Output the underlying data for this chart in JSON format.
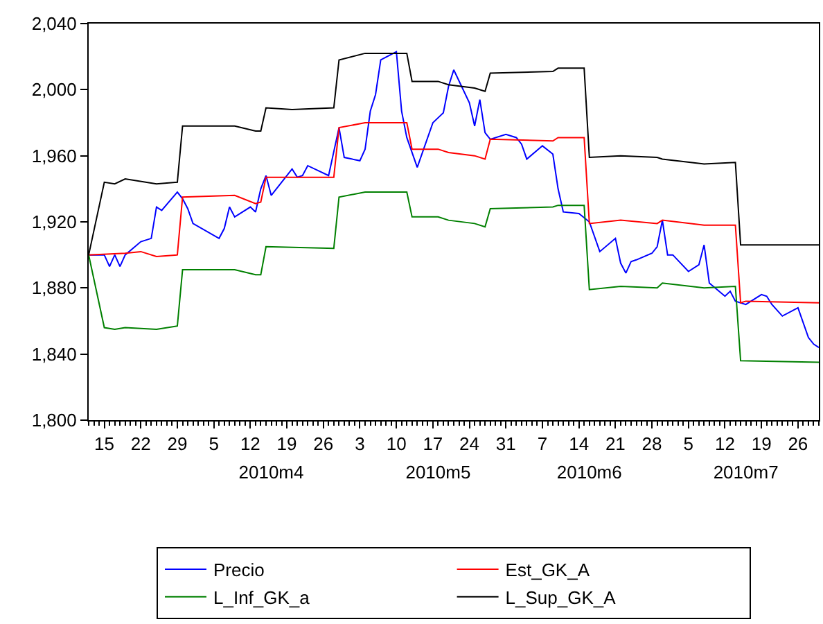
{
  "chart_data": {
    "type": "line",
    "xlim": [
      "2010-03-12",
      "2010-07-30"
    ],
    "xticks": [
      {
        "value": "2010-03-15",
        "label": "15"
      },
      {
        "value": "2010-03-22",
        "label": "22"
      },
      {
        "value": "2010-03-29",
        "label": "29"
      },
      {
        "value": "2010-04-05",
        "label": "5"
      },
      {
        "value": "2010-04-12",
        "label": "12"
      },
      {
        "value": "2010-04-19",
        "label": "19"
      },
      {
        "value": "2010-04-26",
        "label": "26"
      },
      {
        "value": "2010-05-03",
        "label": "3"
      },
      {
        "value": "2010-05-10",
        "label": "10"
      },
      {
        "value": "2010-05-17",
        "label": "17"
      },
      {
        "value": "2010-05-24",
        "label": "24"
      },
      {
        "value": "2010-05-31",
        "label": "31"
      },
      {
        "value": "2010-06-07",
        "label": "7"
      },
      {
        "value": "2010-06-14",
        "label": "14"
      },
      {
        "value": "2010-06-21",
        "label": "21"
      },
      {
        "value": "2010-06-28",
        "label": "28"
      },
      {
        "value": "2010-07-05",
        "label": "5"
      },
      {
        "value": "2010-07-12",
        "label": "12"
      },
      {
        "value": "2010-07-19",
        "label": "19"
      },
      {
        "value": "2010-07-26",
        "label": "26"
      }
    ],
    "x2lim": [
      "2010-03-12",
      "2010-07-30"
    ],
    "x2ticks": [
      {
        "value": "2010-04-16",
        "label": "2010m4"
      },
      {
        "value": "2010-05-18",
        "label": "2010m5"
      },
      {
        "value": "2010-06-16",
        "label": "2010m6"
      },
      {
        "value": "2010-07-16",
        "label": "2010m7"
      }
    ],
    "ylim": [
      1800,
      2040
    ],
    "yticks": [
      {
        "value": 1800,
        "label": "1,800"
      },
      {
        "value": 1840,
        "label": "1,840"
      },
      {
        "value": 1880,
        "label": "1,880"
      },
      {
        "value": 1920,
        "label": "1,920"
      },
      {
        "value": 1960,
        "label": "1,960"
      },
      {
        "value": 2000,
        "label": "2,000"
      },
      {
        "value": 2040,
        "label": "2,040"
      }
    ],
    "legend": "bottom",
    "series": [
      {
        "name": "Precio",
        "color": "#0000ff",
        "x": [
          "2010-03-12",
          "2010-03-15",
          "2010-03-16",
          "2010-03-17",
          "2010-03-18",
          "2010-03-19",
          "2010-03-22",
          "2010-03-24",
          "2010-03-25",
          "2010-03-26",
          "2010-03-29",
          "2010-03-30",
          "2010-03-31",
          "2010-04-01",
          "2010-04-06",
          "2010-04-07",
          "2010-04-08",
          "2010-04-09",
          "2010-04-12",
          "2010-04-13",
          "2010-04-14",
          "2010-04-15",
          "2010-04-16",
          "2010-04-20",
          "2010-04-21",
          "2010-04-22",
          "2010-04-23",
          "2010-04-27",
          "2010-04-29",
          "2010-04-30",
          "2010-05-03",
          "2010-05-04",
          "2010-05-05",
          "2010-05-06",
          "2010-05-07",
          "2010-05-10",
          "2010-05-11",
          "2010-05-12",
          "2010-05-14",
          "2010-05-17",
          "2010-05-18",
          "2010-05-19",
          "2010-05-20",
          "2010-05-21",
          "2010-05-24",
          "2010-05-25",
          "2010-05-26",
          "2010-05-27",
          "2010-05-28",
          "2010-05-31",
          "2010-06-02",
          "2010-06-03",
          "2010-06-04",
          "2010-06-07",
          "2010-06-09",
          "2010-06-10",
          "2010-06-11",
          "2010-06-14",
          "2010-06-16",
          "2010-06-18",
          "2010-06-21",
          "2010-06-22",
          "2010-06-23",
          "2010-06-24",
          "2010-06-25",
          "2010-06-28",
          "2010-06-29",
          "2010-06-30",
          "2010-07-01",
          "2010-07-02",
          "2010-07-05",
          "2010-07-07",
          "2010-07-08",
          "2010-07-09",
          "2010-07-12",
          "2010-07-13",
          "2010-07-14",
          "2010-07-16",
          "2010-07-19",
          "2010-07-20",
          "2010-07-21",
          "2010-07-23",
          "2010-07-26",
          "2010-07-28",
          "2010-07-29",
          "2010-07-30"
        ],
        "values": [
          1900,
          1900,
          1893,
          1900,
          1893,
          1900,
          1908,
          1910,
          1929,
          1927,
          1938,
          1934,
          1928,
          1919,
          1910,
          1916,
          1929,
          1923,
          1929,
          1926,
          1940,
          1948,
          1936,
          1952,
          1947,
          1948,
          1954,
          1948,
          1977,
          1959,
          1957,
          1964,
          1987,
          1997,
          2018,
          2023,
          1987,
          1971,
          1953,
          1980,
          1983,
          1986,
          2002,
          2012,
          1992,
          1978,
          1994,
          1974,
          1970,
          1973,
          1971,
          1967,
          1958,
          1966,
          1961,
          1940,
          1926,
          1925,
          1920,
          1902,
          1910,
          1895,
          1889,
          1896,
          1897,
          1901,
          1905,
          1921,
          1900,
          1900,
          1890,
          1894,
          1906,
          1883,
          1875,
          1878,
          1872,
          1870,
          1876,
          1875,
          1870,
          1863,
          1868,
          1850,
          1846,
          1844
        ]
      },
      {
        "name": "Est_GK_A",
        "color": "#ff0000",
        "x": [
          "2010-03-12",
          "2010-03-19",
          "2010-03-22",
          "2010-03-25",
          "2010-03-29",
          "2010-03-30",
          "2010-04-09",
          "2010-04-13",
          "2010-04-14",
          "2010-04-15",
          "2010-04-28",
          "2010-04-29",
          "2010-05-04",
          "2010-05-12",
          "2010-05-13",
          "2010-05-18",
          "2010-05-20",
          "2010-05-25",
          "2010-05-27",
          "2010-05-28",
          "2010-06-09",
          "2010-06-10",
          "2010-06-15",
          "2010-06-16",
          "2010-06-22",
          "2010-06-29",
          "2010-06-30",
          "2010-07-08",
          "2010-07-14",
          "2010-07-15",
          "2010-07-16",
          "2010-07-30"
        ],
        "values": [
          1900,
          1901,
          1902,
          1899,
          1900,
          1935,
          1936,
          1931,
          1932,
          1947,
          1947,
          1977,
          1980,
          1980,
          1964,
          1964,
          1962,
          1960,
          1958,
          1970,
          1969,
          1971,
          1971,
          1919,
          1921,
          1919,
          1921,
          1918,
          1918,
          1871,
          1872,
          1871
        ]
      },
      {
        "name": "L_Inf_GK_a",
        "color": "#008000",
        "x": [
          "2010-03-12",
          "2010-03-15",
          "2010-03-17",
          "2010-03-19",
          "2010-03-25",
          "2010-03-29",
          "2010-03-30",
          "2010-04-09",
          "2010-04-13",
          "2010-04-14",
          "2010-04-15",
          "2010-04-28",
          "2010-04-29",
          "2010-05-04",
          "2010-05-12",
          "2010-05-13",
          "2010-05-18",
          "2010-05-20",
          "2010-05-25",
          "2010-05-27",
          "2010-05-28",
          "2010-06-09",
          "2010-06-10",
          "2010-06-15",
          "2010-06-16",
          "2010-06-22",
          "2010-06-29",
          "2010-06-30",
          "2010-07-08",
          "2010-07-14",
          "2010-07-15",
          "2010-07-30"
        ],
        "values": [
          1900,
          1856,
          1855,
          1856,
          1855,
          1857,
          1891,
          1891,
          1888,
          1888,
          1905,
          1904,
          1935,
          1938,
          1938,
          1923,
          1923,
          1921,
          1919,
          1917,
          1928,
          1929,
          1930,
          1930,
          1879,
          1881,
          1880,
          1883,
          1880,
          1881,
          1836,
          1835
        ]
      },
      {
        "name": "L_Sup_GK_A",
        "color": "#000000",
        "x": [
          "2010-03-12",
          "2010-03-15",
          "2010-03-17",
          "2010-03-19",
          "2010-03-25",
          "2010-03-29",
          "2010-03-30",
          "2010-04-09",
          "2010-04-13",
          "2010-04-14",
          "2010-04-15",
          "2010-04-20",
          "2010-04-28",
          "2010-04-29",
          "2010-05-04",
          "2010-05-12",
          "2010-05-13",
          "2010-05-18",
          "2010-05-20",
          "2010-05-25",
          "2010-05-27",
          "2010-05-28",
          "2010-06-09",
          "2010-06-10",
          "2010-06-15",
          "2010-06-16",
          "2010-06-22",
          "2010-06-29",
          "2010-06-30",
          "2010-07-08",
          "2010-07-14",
          "2010-07-15",
          "2010-07-30"
        ],
        "values": [
          1900,
          1944,
          1943,
          1946,
          1943,
          1944,
          1978,
          1978,
          1975,
          1975,
          1989,
          1988,
          1989,
          2018,
          2022,
          2022,
          2005,
          2005,
          2003,
          2001,
          1999,
          2010,
          2011,
          2013,
          2013,
          1959,
          1960,
          1959,
          1958,
          1955,
          1956,
          1906,
          1906
        ]
      }
    ]
  }
}
